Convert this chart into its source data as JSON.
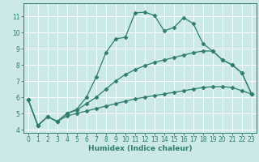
{
  "title": "",
  "xlabel": "Humidex (Indice chaleur)",
  "bg_color": "#cce8e8",
  "grid_color": "#ffffff",
  "line_color": "#2e7d6e",
  "xlim": [
    -0.5,
    23.5
  ],
  "ylim": [
    3.8,
    11.8
  ],
  "xticks": [
    0,
    1,
    2,
    3,
    4,
    5,
    6,
    7,
    8,
    9,
    10,
    11,
    12,
    13,
    14,
    15,
    16,
    17,
    18,
    19,
    20,
    21,
    22,
    23
  ],
  "yticks": [
    4,
    5,
    6,
    7,
    8,
    9,
    10,
    11
  ],
  "lines": [
    {
      "x": [
        0,
        1,
        2,
        3,
        4,
        5,
        6,
        7,
        8,
        9,
        10,
        11,
        12,
        13,
        14,
        15,
        16,
        17,
        18,
        19,
        20,
        21,
        22,
        23
      ],
      "y": [
        5.85,
        4.25,
        4.8,
        4.5,
        5.0,
        5.25,
        6.0,
        7.25,
        8.75,
        9.6,
        9.7,
        11.2,
        11.25,
        11.05,
        10.1,
        10.3,
        10.9,
        10.55,
        9.3,
        8.85,
        8.3,
        8.0,
        7.5,
        6.2
      ]
    },
    {
      "x": [
        0,
        1,
        2,
        3,
        4,
        5,
        6,
        7,
        8,
        9,
        10,
        11,
        12,
        13,
        14,
        15,
        16,
        17,
        18,
        19,
        20,
        21,
        22,
        23
      ],
      "y": [
        5.85,
        4.25,
        4.8,
        4.5,
        5.0,
        5.2,
        5.6,
        6.0,
        6.5,
        7.0,
        7.4,
        7.7,
        7.95,
        8.15,
        8.3,
        8.45,
        8.6,
        8.75,
        8.85,
        8.85,
        8.3,
        8.0,
        7.5,
        6.2
      ]
    },
    {
      "x": [
        0,
        1,
        2,
        3,
        4,
        5,
        6,
        7,
        8,
        9,
        10,
        11,
        12,
        13,
        14,
        15,
        16,
        17,
        18,
        19,
        20,
        21,
        22,
        23
      ],
      "y": [
        5.85,
        4.25,
        4.8,
        4.5,
        4.85,
        5.0,
        5.15,
        5.3,
        5.45,
        5.6,
        5.75,
        5.9,
        6.0,
        6.1,
        6.2,
        6.3,
        6.4,
        6.5,
        6.6,
        6.65,
        6.65,
        6.6,
        6.4,
        6.2
      ]
    }
  ]
}
